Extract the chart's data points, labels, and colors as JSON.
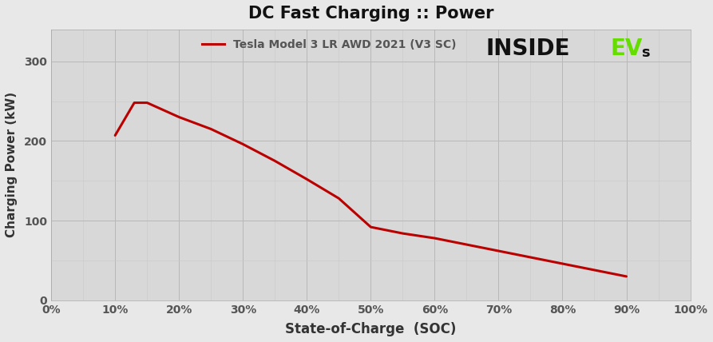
{
  "title": "DC Fast Charging :: Power",
  "xlabel": "State-of-Charge  (SOC)",
  "ylabel": "Charging Power (kW)",
  "legend_label": "Tesla Model 3 LR AWD 2021 (V3 SC)",
  "line_color": "#bb0000",
  "line_width": 2.2,
  "background_color": "#e8e8e8",
  "plot_bg_color": "#d8d8d8",
  "grid_color_major": "#c0c0c0",
  "grid_color_minor": "#d0d0d0",
  "xlim": [
    0,
    1.0
  ],
  "ylim": [
    0,
    340
  ],
  "xticks": [
    0.0,
    0.1,
    0.2,
    0.3,
    0.4,
    0.5,
    0.6,
    0.7,
    0.8,
    0.9,
    1.0
  ],
  "yticks": [
    0,
    100,
    200,
    300
  ],
  "soc": [
    0.1,
    0.13,
    0.15,
    0.2,
    0.25,
    0.3,
    0.35,
    0.4,
    0.45,
    0.5,
    0.55,
    0.6,
    0.65,
    0.7,
    0.75,
    0.8,
    0.85,
    0.9
  ],
  "power": [
    207,
    248,
    248,
    230,
    215,
    196,
    175,
    152,
    128,
    92,
    84,
    78,
    70,
    62,
    54,
    46,
    38,
    30
  ],
  "logo_inside": "INSIDE",
  "logo_ev": "EV",
  "logo_s": "s",
  "logo_color_black": "#111111",
  "logo_color_green": "#66dd00",
  "tick_color": "#555555",
  "label_color": "#333333",
  "title_color": "#111111"
}
